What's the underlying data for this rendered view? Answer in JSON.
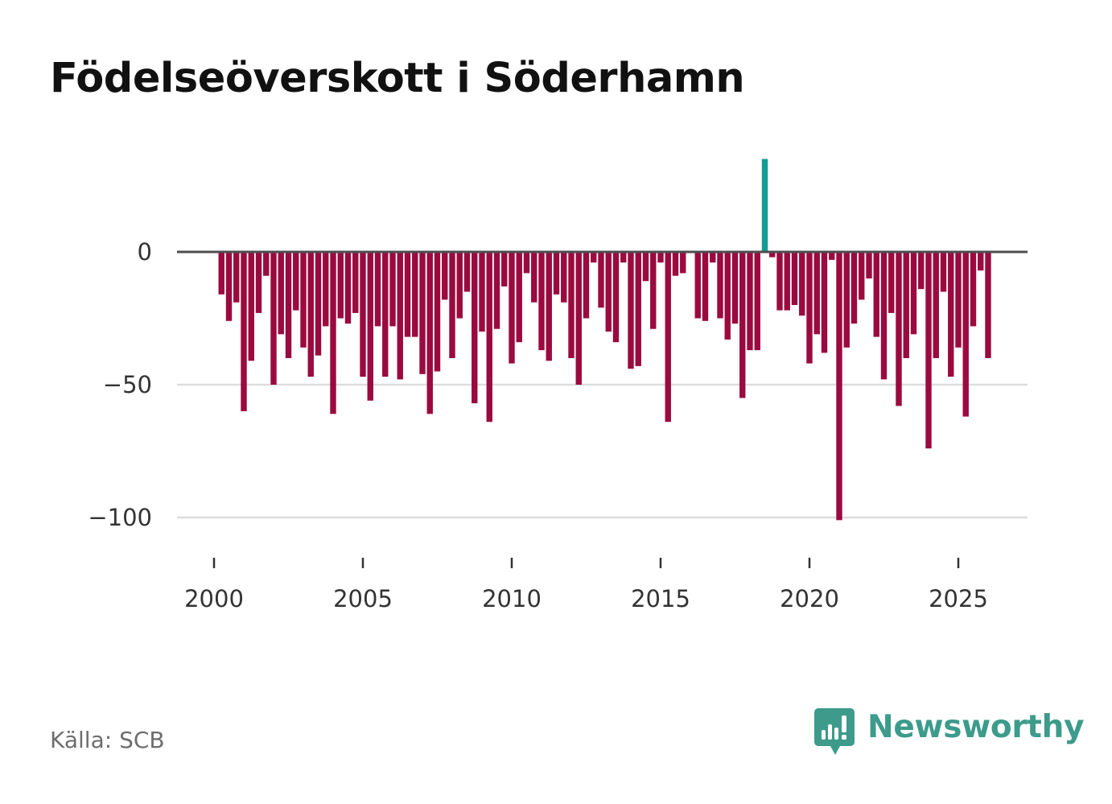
{
  "title": "Födelseöverskott i Söderhamn",
  "source": "Källa: SCB",
  "brand": {
    "name": "Newsworthy",
    "icon": "bar-chart-speech-bubble-icon"
  },
  "colors": {
    "negative": "#9b0a3f",
    "positive": "#149a93",
    "zero_line": "#4d4d4d",
    "grid": "#dddddd",
    "brand": "#3d9b8b"
  },
  "chart_data": {
    "type": "bar",
    "title": "Födelseöverskott i Söderhamn",
    "xlabel": "",
    "ylabel": "",
    "x_ticks": [
      2000,
      2005,
      2010,
      2015,
      2020,
      2025
    ],
    "x_tick_labels": [
      "2000",
      "2005",
      "2010",
      "2015",
      "2020",
      "2025"
    ],
    "y_ticks": [
      0,
      -50,
      -100
    ],
    "y_tick_labels": [
      "0",
      "−50",
      "−100"
    ],
    "ylim": [
      -100,
      35
    ],
    "grid": true,
    "period": "quarterly",
    "x": [
      2000.0,
      2000.25,
      2000.5,
      2000.75,
      2001.0,
      2001.25,
      2001.5,
      2001.75,
      2002.0,
      2002.25,
      2002.5,
      2002.75,
      2003.0,
      2003.25,
      2003.5,
      2003.75,
      2004.0,
      2004.25,
      2004.5,
      2004.75,
      2005.0,
      2005.25,
      2005.5,
      2005.75,
      2006.0,
      2006.25,
      2006.5,
      2006.75,
      2007.0,
      2007.25,
      2007.5,
      2007.75,
      2008.0,
      2008.25,
      2008.5,
      2008.75,
      2009.0,
      2009.25,
      2009.5,
      2009.75,
      2010.0,
      2010.25,
      2010.5,
      2010.75,
      2011.0,
      2011.25,
      2011.5,
      2011.75,
      2012.0,
      2012.25,
      2012.5,
      2012.75,
      2013.0,
      2013.25,
      2013.5,
      2013.75,
      2014.0,
      2014.25,
      2014.5,
      2014.75,
      2015.0,
      2015.25,
      2015.5,
      2015.75,
      2016.0,
      2016.25,
      2016.5,
      2016.75,
      2017.0,
      2017.25,
      2017.5,
      2017.75,
      2018.0,
      2018.25,
      2018.5,
      2018.75,
      2019.0,
      2019.25,
      2019.5,
      2019.75,
      2020.0,
      2020.25,
      2020.5,
      2020.75,
      2021.0,
      2021.25,
      2021.5,
      2021.75,
      2022.0,
      2022.25,
      2022.5,
      2022.75,
      2023.0,
      2023.25,
      2023.5,
      2023.75,
      2024.0,
      2024.25,
      2024.5,
      2024.75,
      2025.0,
      2025.25,
      2025.5,
      2025.75
    ],
    "values": [
      0,
      -16,
      -26,
      -19,
      -60,
      -41,
      -23,
      -9,
      -50,
      -31,
      -40,
      -22,
      -36,
      -47,
      -39,
      -28,
      -61,
      -25,
      -27,
      -23,
      -47,
      -56,
      -28,
      -47,
      -28,
      -48,
      -32,
      -32,
      -46,
      -61,
      -45,
      -18,
      -40,
      -25,
      -15,
      -57,
      -30,
      -64,
      -29,
      -13,
      -42,
      -34,
      -8,
      -19,
      -37,
      -41,
      -16,
      -19,
      -40,
      -50,
      -25,
      -4,
      -21,
      -30,
      -34,
      -4,
      -44,
      -43,
      -11,
      -29,
      -4,
      -64,
      -9,
      -8,
      0,
      -25,
      -26,
      -4,
      -25,
      -33,
      -27,
      -55,
      -37,
      -37,
      35,
      -2,
      -22,
      -22,
      -20,
      -24,
      -42,
      -31,
      -38,
      -3,
      -101,
      -36,
      -27,
      -18,
      -10,
      -32,
      -48,
      -23,
      -58,
      -40,
      -31,
      -14,
      -74,
      -40,
      -15,
      -47,
      -36,
      -62,
      -28,
      -7
    ],
    "last_value": -40,
    "last_x": 2026.0
  }
}
